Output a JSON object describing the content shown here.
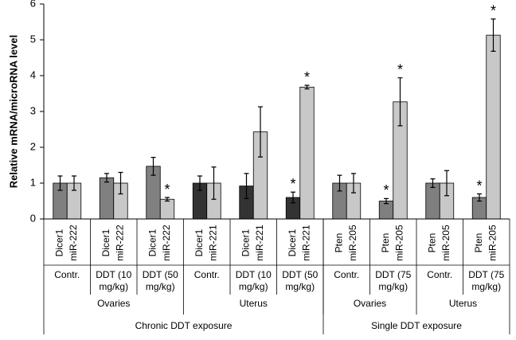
{
  "chart_data": {
    "type": "bar",
    "y_label": "Relative mRNA/microRNA level",
    "ylim": [
      0,
      6
    ],
    "yticks": [
      0,
      1,
      2,
      3,
      4,
      5,
      6
    ],
    "groups": [
      {
        "condition": "Contr.",
        "bars": [
          {
            "label": "Dicer1",
            "value": 1.0,
            "error": 0.2,
            "color": "#808080"
          },
          {
            "label": "miR-222",
            "value": 1.0,
            "error": 0.2,
            "color": "#c8c8c8"
          }
        ]
      },
      {
        "condition": "DDT (10 mg/kg)",
        "bars": [
          {
            "label": "Dicer1",
            "value": 1.15,
            "error": 0.12,
            "color": "#808080"
          },
          {
            "label": "miR-222",
            "value": 1.0,
            "error": 0.3,
            "color": "#c8c8c8"
          }
        ]
      },
      {
        "condition": "DDT (50 mg/kg)",
        "bars": [
          {
            "label": "Dicer1",
            "value": 1.47,
            "error": 0.25,
            "color": "#808080"
          },
          {
            "label": "miR-222",
            "value": 0.55,
            "error": 0.05,
            "color": "#c8c8c8",
            "annotation": "*"
          }
        ]
      },
      {
        "condition": "Contr.",
        "bars": [
          {
            "label": "Dicer1",
            "value": 1.0,
            "error": 0.2,
            "color": "#333333"
          },
          {
            "label": "miR-221",
            "value": 1.0,
            "error": 0.45,
            "color": "#c8c8c8"
          }
        ]
      },
      {
        "condition": "DDT (10 mg/kg)",
        "bars": [
          {
            "label": "Dicer1",
            "value": 0.92,
            "error": 0.35,
            "color": "#333333"
          },
          {
            "label": "miR-221",
            "value": 2.43,
            "error": 0.7,
            "color": "#c8c8c8"
          }
        ]
      },
      {
        "condition": "DDT (50 mg/kg)",
        "bars": [
          {
            "label": "Dicer1",
            "value": 0.6,
            "error": 0.15,
            "color": "#333333",
            "annotation": "*"
          },
          {
            "label": "miR-221",
            "value": 3.68,
            "error": 0.05,
            "color": "#c8c8c8",
            "annotation": "*"
          }
        ]
      },
      {
        "condition": "Contr.",
        "bars": [
          {
            "label": "Pten",
            "value": 1.0,
            "error": 0.22,
            "color": "#7f7f7f"
          },
          {
            "label": "miR-205",
            "value": 1.0,
            "error": 0.27,
            "color": "#c8c8c8"
          }
        ]
      },
      {
        "condition": "DDT (75 mg/kg)",
        "bars": [
          {
            "label": "Pten",
            "value": 0.5,
            "error": 0.07,
            "color": "#7f7f7f",
            "annotation": "*"
          },
          {
            "label": "miR-205",
            "value": 3.27,
            "error": 0.67,
            "color": "#c8c8c8",
            "annotation": "*"
          }
        ]
      },
      {
        "condition": "Contr.",
        "bars": [
          {
            "label": "Pten",
            "value": 1.0,
            "error": 0.12,
            "color": "#7f7f7f"
          },
          {
            "label": "miR-205",
            "value": 1.0,
            "error": 0.35,
            "color": "#c8c8c8"
          }
        ]
      },
      {
        "condition": "DDT (75 mg/kg)",
        "bars": [
          {
            "label": "Pten",
            "value": 0.6,
            "error": 0.1,
            "color": "#7f7f7f",
            "annotation": "*"
          },
          {
            "label": "miR-205",
            "value": 5.13,
            "error": 0.45,
            "color": "#c8c8c8",
            "annotation": "*"
          }
        ]
      }
    ],
    "tissues": [
      {
        "label": "Ovaries",
        "count": 3
      },
      {
        "label": "Uterus",
        "count": 3
      },
      {
        "label": "Ovaries",
        "count": 2
      },
      {
        "label": "Uterus",
        "count": 2
      }
    ],
    "exposures": [
      {
        "label": "Chronic DDT exposure",
        "count": 6
      },
      {
        "label": "Single DDT exposure",
        "count": 4
      }
    ]
  }
}
